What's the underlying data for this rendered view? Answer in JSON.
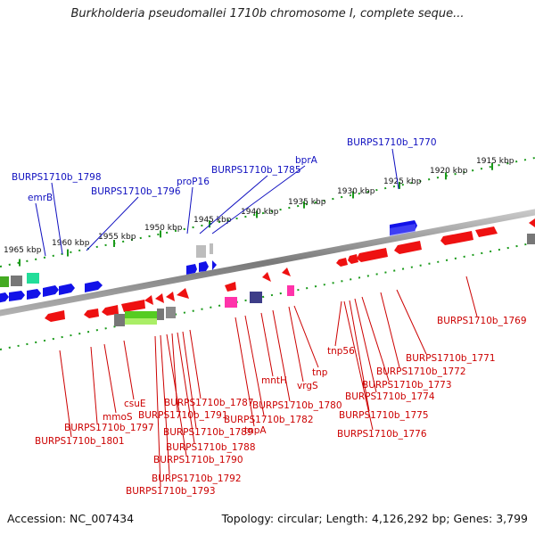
{
  "title": "Burkholderia pseudomallei 1710b chromosome I, complete seque...",
  "footer": {
    "accession": "Accession: NC_007434",
    "summary": "Topology: circular; Length: 4,126,292 bp; Genes: 3,799"
  },
  "colors": {
    "forward_gene": "#1212e8",
    "reverse_gene": "#ee1111",
    "backbone": "#8a8a8a",
    "tick": "#1a9a1a",
    "forward_label": "#1010c0",
    "reverse_label": "#cc0000"
  },
  "scale_ticks": [
    {
      "label": "1915 kbp"
    },
    {
      "label": "1920 kbp"
    },
    {
      "label": "1925 kbp"
    },
    {
      "label": "1930 kbp"
    },
    {
      "label": "1935 kbp"
    },
    {
      "label": "1940 kbp"
    },
    {
      "label": "1945 kbp"
    },
    {
      "label": "1950 kbp"
    },
    {
      "label": "1955 kbp"
    },
    {
      "label": "1960 kbp"
    },
    {
      "label": "1965 kbp"
    }
  ],
  "forward_labels": [
    "BURPS1710b_1770",
    "bprA",
    "BURPS1710b_1785",
    "proP16",
    "BURPS1710b_1796",
    "BURPS1710b_1798",
    "emrB"
  ],
  "reverse_labels": [
    "BURPS1710b_1769",
    "BURPS1710b_1771",
    "BURPS1710b_1772",
    "BURPS1710b_1773",
    "BURPS1710b_1774",
    "BURPS1710b_1775",
    "BURPS1710b_1776",
    "tnp56",
    "tnp",
    "vrgS",
    "BURPS1710b_1780",
    "mntH",
    "BURPS1710b_1782",
    "tnpA",
    "BURPS1710b_1787",
    "BURPS1710b_1789",
    "BURPS1710b_1788",
    "BURPS1710b_1791",
    "BURPS1710b_1790",
    "BURPS1710b_1792",
    "BURPS1710b_1793",
    "csuE",
    "mmoS",
    "BURPS1710b_1797",
    "BURPS1710b_1801"
  ]
}
